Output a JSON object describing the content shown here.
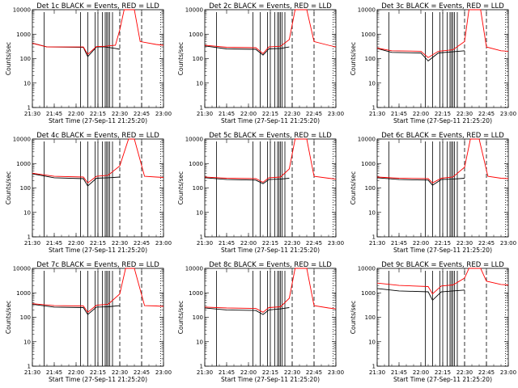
{
  "figure": {
    "background": "#ffffff",
    "colors": {
      "events": "#000000",
      "lld": "#ff0000",
      "axes": "#000000"
    }
  },
  "chart_data": [
    {
      "type": "line",
      "title": "Det 1c BLACK = Events, RED = LLD",
      "xlabel": "Start Time (27-Sep-11 21:25:20)",
      "ylabel": "Counts/sec",
      "yscale": "log",
      "ylim": [
        1,
        10000
      ],
      "xlim": [
        "21:30",
        "23:00"
      ],
      "x_ticks": [
        "21:30",
        "21:45",
        "22:00",
        "22:15",
        "22:30",
        "22:45",
        "23:00"
      ],
      "y_ticks": [
        "1",
        "10",
        "100",
        "1000",
        "10000"
      ],
      "series": [
        {
          "color": "#000000",
          "points": [
            [
              "21:30",
              430
            ],
            [
              "21:40",
              300
            ],
            [
              "22:05",
              290
            ],
            [
              "22:08",
              120
            ],
            [
              "22:14",
              300
            ],
            [
              "22:20",
              300
            ],
            [
              "22:27",
              260
            ],
            [
              "22:30",
              240
            ]
          ]
        },
        {
          "color": "#ff0000",
          "points": [
            [
              "21:30",
              420
            ],
            [
              "21:40",
              300
            ],
            [
              "22:05",
              300
            ],
            [
              "22:08",
              150
            ],
            [
              "22:14",
              310
            ],
            [
              "22:20",
              320
            ],
            [
              "22:27",
              350
            ],
            [
              "22:30",
              1500
            ],
            [
              "22:33",
              10000
            ],
            [
              "22:40",
              10000
            ],
            [
              "22:44",
              500
            ],
            [
              "22:55",
              380
            ],
            [
              "23:00",
              350
            ]
          ]
        }
      ]
    },
    {
      "type": "line",
      "title": "Det 2c BLACK = Events, RED = LLD",
      "xlabel": "Start Time (27-Sep-11 21:25:20)",
      "ylabel": "Counts/sec",
      "yscale": "log",
      "ylim": [
        1,
        10000
      ],
      "xlim": [
        "21:30",
        "23:00"
      ],
      "x_ticks": [
        "21:30",
        "21:45",
        "22:00",
        "22:15",
        "22:30",
        "22:45",
        "23:00"
      ],
      "y_ticks": [
        "1",
        "10",
        "100",
        "1000",
        "10000"
      ],
      "series": [
        {
          "color": "#000000",
          "points": [
            [
              "21:30",
              330
            ],
            [
              "21:45",
              250
            ],
            [
              "22:05",
              240
            ],
            [
              "22:10",
              140
            ],
            [
              "22:14",
              250
            ],
            [
              "22:22",
              260
            ],
            [
              "22:28",
              300
            ]
          ]
        },
        {
          "color": "#ff0000",
          "points": [
            [
              "21:30",
              350
            ],
            [
              "21:45",
              290
            ],
            [
              "22:05",
              280
            ],
            [
              "22:10",
              160
            ],
            [
              "22:14",
              300
            ],
            [
              "22:22",
              320
            ],
            [
              "22:28",
              600
            ],
            [
              "22:32",
              10000
            ],
            [
              "22:40",
              10000
            ],
            [
              "22:45",
              500
            ],
            [
              "22:55",
              350
            ],
            [
              "23:00",
              300
            ]
          ]
        }
      ]
    },
    {
      "type": "line",
      "title": "Det 3c BLACK = Events, RED = LLD",
      "xlabel": "Start Time (27-Sep-11 21:25:20)",
      "ylabel": "Counts/sec",
      "yscale": "log",
      "ylim": [
        1,
        10000
      ],
      "xlim": [
        "21:30",
        "23:00"
      ],
      "x_ticks": [
        "21:30",
        "21:45",
        "22:00",
        "22:15",
        "22:30",
        "22:45",
        "23:00"
      ],
      "y_ticks": [
        "1",
        "10",
        "100",
        "1000",
        "10000"
      ],
      "series": [
        {
          "color": "#000000",
          "points": [
            [
              "21:30",
              260
            ],
            [
              "21:40",
              180
            ],
            [
              "22:00",
              170
            ],
            [
              "22:05",
              80
            ],
            [
              "22:12",
              170
            ],
            [
              "22:22",
              190
            ],
            [
              "22:30",
              210
            ]
          ]
        },
        {
          "color": "#ff0000",
          "points": [
            [
              "21:30",
              270
            ],
            [
              "21:40",
              210
            ],
            [
              "22:00",
              200
            ],
            [
              "22:05",
              110
            ],
            [
              "22:12",
              200
            ],
            [
              "22:22",
              230
            ],
            [
              "22:30",
              500
            ],
            [
              "22:33",
              10000
            ],
            [
              "22:41",
              10000
            ],
            [
              "22:45",
              300
            ],
            [
              "22:55",
              210
            ],
            [
              "23:00",
              200
            ]
          ]
        }
      ]
    },
    {
      "type": "line",
      "title": "Det 4c BLACK = Events, RED = LLD",
      "xlabel": "Start Time (27-Sep-11 21:25:20)",
      "ylabel": "Counts/sec",
      "yscale": "log",
      "ylim": [
        1,
        10000
      ],
      "xlim": [
        "21:30",
        "23:00"
      ],
      "x_ticks": [
        "21:30",
        "21:45",
        "22:00",
        "22:15",
        "22:30",
        "22:45",
        "23:00"
      ],
      "y_ticks": [
        "1",
        "10",
        "100",
        "1000",
        "10000"
      ],
      "series": [
        {
          "color": "#000000",
          "points": [
            [
              "21:30",
              380
            ],
            [
              "21:45",
              260
            ],
            [
              "22:05",
              240
            ],
            [
              "22:08",
              120
            ],
            [
              "22:14",
              250
            ],
            [
              "22:22",
              260
            ],
            [
              "22:30",
              280
            ]
          ]
        },
        {
          "color": "#ff0000",
          "points": [
            [
              "21:30",
              400
            ],
            [
              "21:45",
              300
            ],
            [
              "22:05",
              280
            ],
            [
              "22:08",
              160
            ],
            [
              "22:14",
              300
            ],
            [
              "22:22",
              330
            ],
            [
              "22:30",
              800
            ],
            [
              "22:36",
              10000
            ],
            [
              "22:40",
              10000
            ],
            [
              "22:47",
              300
            ],
            [
              "22:55",
              280
            ],
            [
              "23:00",
              270
            ]
          ]
        }
      ]
    },
    {
      "type": "line",
      "title": "Det 5c BLACK = Events, RED = LLD",
      "xlabel": "Start Time (27-Sep-11 21:25:20)",
      "ylabel": "Counts/sec",
      "yscale": "log",
      "ylim": [
        1,
        10000
      ],
      "xlim": [
        "21:30",
        "23:00"
      ],
      "x_ticks": [
        "21:30",
        "21:45",
        "22:00",
        "22:15",
        "22:30",
        "22:45",
        "23:00"
      ],
      "y_ticks": [
        "1",
        "10",
        "100",
        "1000",
        "10000"
      ],
      "series": [
        {
          "color": "#000000",
          "points": [
            [
              "21:30",
              260
            ],
            [
              "21:45",
              220
            ],
            [
              "22:05",
              210
            ],
            [
              "22:10",
              150
            ],
            [
              "22:14",
              220
            ],
            [
              "22:22",
              230
            ],
            [
              "22:28",
              250
            ]
          ]
        },
        {
          "color": "#ff0000",
          "points": [
            [
              "21:30",
              280
            ],
            [
              "21:45",
              250
            ],
            [
              "22:05",
              240
            ],
            [
              "22:10",
              170
            ],
            [
              "22:14",
              260
            ],
            [
              "22:22",
              280
            ],
            [
              "22:28",
              600
            ],
            [
              "22:32",
              10000
            ],
            [
              "22:40",
              10000
            ],
            [
              "22:45",
              300
            ],
            [
              "22:55",
              250
            ],
            [
              "23:00",
              230
            ]
          ]
        }
      ]
    },
    {
      "type": "line",
      "title": "Det 6c BLACK = Events, RED = LLD",
      "xlabel": "Start Time (27-Sep-11 21:25:20)",
      "ylabel": "Counts/sec",
      "yscale": "log",
      "ylim": [
        1,
        10000
      ],
      "xlim": [
        "21:30",
        "23:00"
      ],
      "x_ticks": [
        "21:30",
        "21:45",
        "22:00",
        "22:15",
        "22:30",
        "22:45",
        "23:00"
      ],
      "y_ticks": [
        "1",
        "10",
        "100",
        "1000",
        "10000"
      ],
      "series": [
        {
          "color": "#000000",
          "points": [
            [
              "21:30",
              260
            ],
            [
              "21:45",
              220
            ],
            [
              "22:05",
              210
            ],
            [
              "22:08",
              130
            ],
            [
              "22:14",
              220
            ],
            [
              "22:22",
              230
            ],
            [
              "22:30",
              250
            ]
          ]
        },
        {
          "color": "#ff0000",
          "points": [
            [
              "21:30",
              280
            ],
            [
              "21:45",
              250
            ],
            [
              "22:05",
              240
            ],
            [
              "22:08",
              160
            ],
            [
              "22:14",
              250
            ],
            [
              "22:22",
              280
            ],
            [
              "22:30",
              700
            ],
            [
              "22:34",
              10000
            ],
            [
              "22:40",
              10000
            ],
            [
              "22:46",
              300
            ],
            [
              "22:55",
              250
            ],
            [
              "23:00",
              240
            ]
          ]
        }
      ]
    },
    {
      "type": "line",
      "title": "Det 7c BLACK = Events, RED = LLD",
      "xlabel": "Start Time (27-Sep-11 21:25:20)",
      "ylabel": "Counts/sec",
      "yscale": "log",
      "ylim": [
        1,
        10000
      ],
      "xlim": [
        "21:30",
        "23:00"
      ],
      "x_ticks": [
        "21:30",
        "21:45",
        "22:00",
        "22:15",
        "22:30",
        "22:45",
        "23:00"
      ],
      "y_ticks": [
        "1",
        "10",
        "100",
        "1000",
        "10000"
      ],
      "series": [
        {
          "color": "#000000",
          "points": [
            [
              "21:30",
              340
            ],
            [
              "21:45",
              260
            ],
            [
              "22:05",
              250
            ],
            [
              "22:08",
              130
            ],
            [
              "22:14",
              260
            ],
            [
              "22:22",
              270
            ],
            [
              "22:30",
              300
            ]
          ]
        },
        {
          "color": "#ff0000",
          "points": [
            [
              "21:30",
              360
            ],
            [
              "21:45",
              300
            ],
            [
              "22:05",
              290
            ],
            [
              "22:08",
              160
            ],
            [
              "22:14",
              310
            ],
            [
              "22:22",
              340
            ],
            [
              "22:30",
              900
            ],
            [
              "22:34",
              10000
            ],
            [
              "22:40",
              10000
            ],
            [
              "22:47",
              300
            ],
            [
              "22:55",
              290
            ],
            [
              "23:00",
              280
            ]
          ]
        }
      ]
    },
    {
      "type": "line",
      "title": "Det 8c BLACK = Events, RED = LLD",
      "xlabel": "Start Time (27-Sep-11 21:25:20)",
      "ylabel": "Counts/sec",
      "yscale": "log",
      "ylim": [
        1,
        10000
      ],
      "xlim": [
        "21:30",
        "23:00"
      ],
      "x_ticks": [
        "21:30",
        "21:45",
        "22:00",
        "22:15",
        "22:30",
        "22:45",
        "23:00"
      ],
      "y_ticks": [
        "1",
        "10",
        "100",
        "1000",
        "10000"
      ],
      "series": [
        {
          "color": "#000000",
          "points": [
            [
              "21:30",
              240
            ],
            [
              "21:45",
              200
            ],
            [
              "22:05",
              190
            ],
            [
              "22:10",
              130
            ],
            [
              "22:14",
              200
            ],
            [
              "22:22",
              220
            ],
            [
              "22:28",
              250
            ]
          ]
        },
        {
          "color": "#ff0000",
          "points": [
            [
              "21:30",
              260
            ],
            [
              "21:45",
              240
            ],
            [
              "22:05",
              230
            ],
            [
              "22:10",
              160
            ],
            [
              "22:14",
              250
            ],
            [
              "22:22",
              270
            ],
            [
              "22:28",
              600
            ],
            [
              "22:32",
              10000
            ],
            [
              "22:40",
              10000
            ],
            [
              "22:45",
              300
            ],
            [
              "22:55",
              240
            ],
            [
              "23:00",
              220
            ]
          ]
        }
      ]
    },
    {
      "type": "line",
      "title": "Det 9c BLACK = Events, RED = LLD",
      "xlabel": "Start Time (27-Sep-11 21:25:20)",
      "ylabel": "Counts/sec",
      "yscale": "log",
      "ylim": [
        1,
        10000
      ],
      "xlim": [
        "21:30",
        "23:00"
      ],
      "x_ticks": [
        "21:30",
        "21:45",
        "22:00",
        "22:15",
        "22:30",
        "22:45",
        "23:00"
      ],
      "y_ticks": [
        "1",
        "10",
        "100",
        "1000",
        "10000"
      ],
      "series": [
        {
          "color": "#000000",
          "points": [
            [
              "21:30",
              1500
            ],
            [
              "21:45",
              1200
            ],
            [
              "22:05",
              1100
            ],
            [
              "22:08",
              500
            ],
            [
              "22:14",
              1100
            ],
            [
              "22:22",
              1200
            ],
            [
              "22:30",
              1300
            ]
          ]
        },
        {
          "color": "#ff0000",
          "points": [
            [
              "21:30",
              2500
            ],
            [
              "21:45",
              2000
            ],
            [
              "22:05",
              1800
            ],
            [
              "22:08",
              900
            ],
            [
              "22:14",
              1900
            ],
            [
              "22:22",
              2100
            ],
            [
              "22:30",
              4000
            ],
            [
              "22:33",
              10000
            ],
            [
              "22:41",
              10000
            ],
            [
              "22:45",
              3000
            ],
            [
              "22:55",
              2200
            ],
            [
              "23:00",
              2100
            ]
          ]
        }
      ]
    }
  ]
}
